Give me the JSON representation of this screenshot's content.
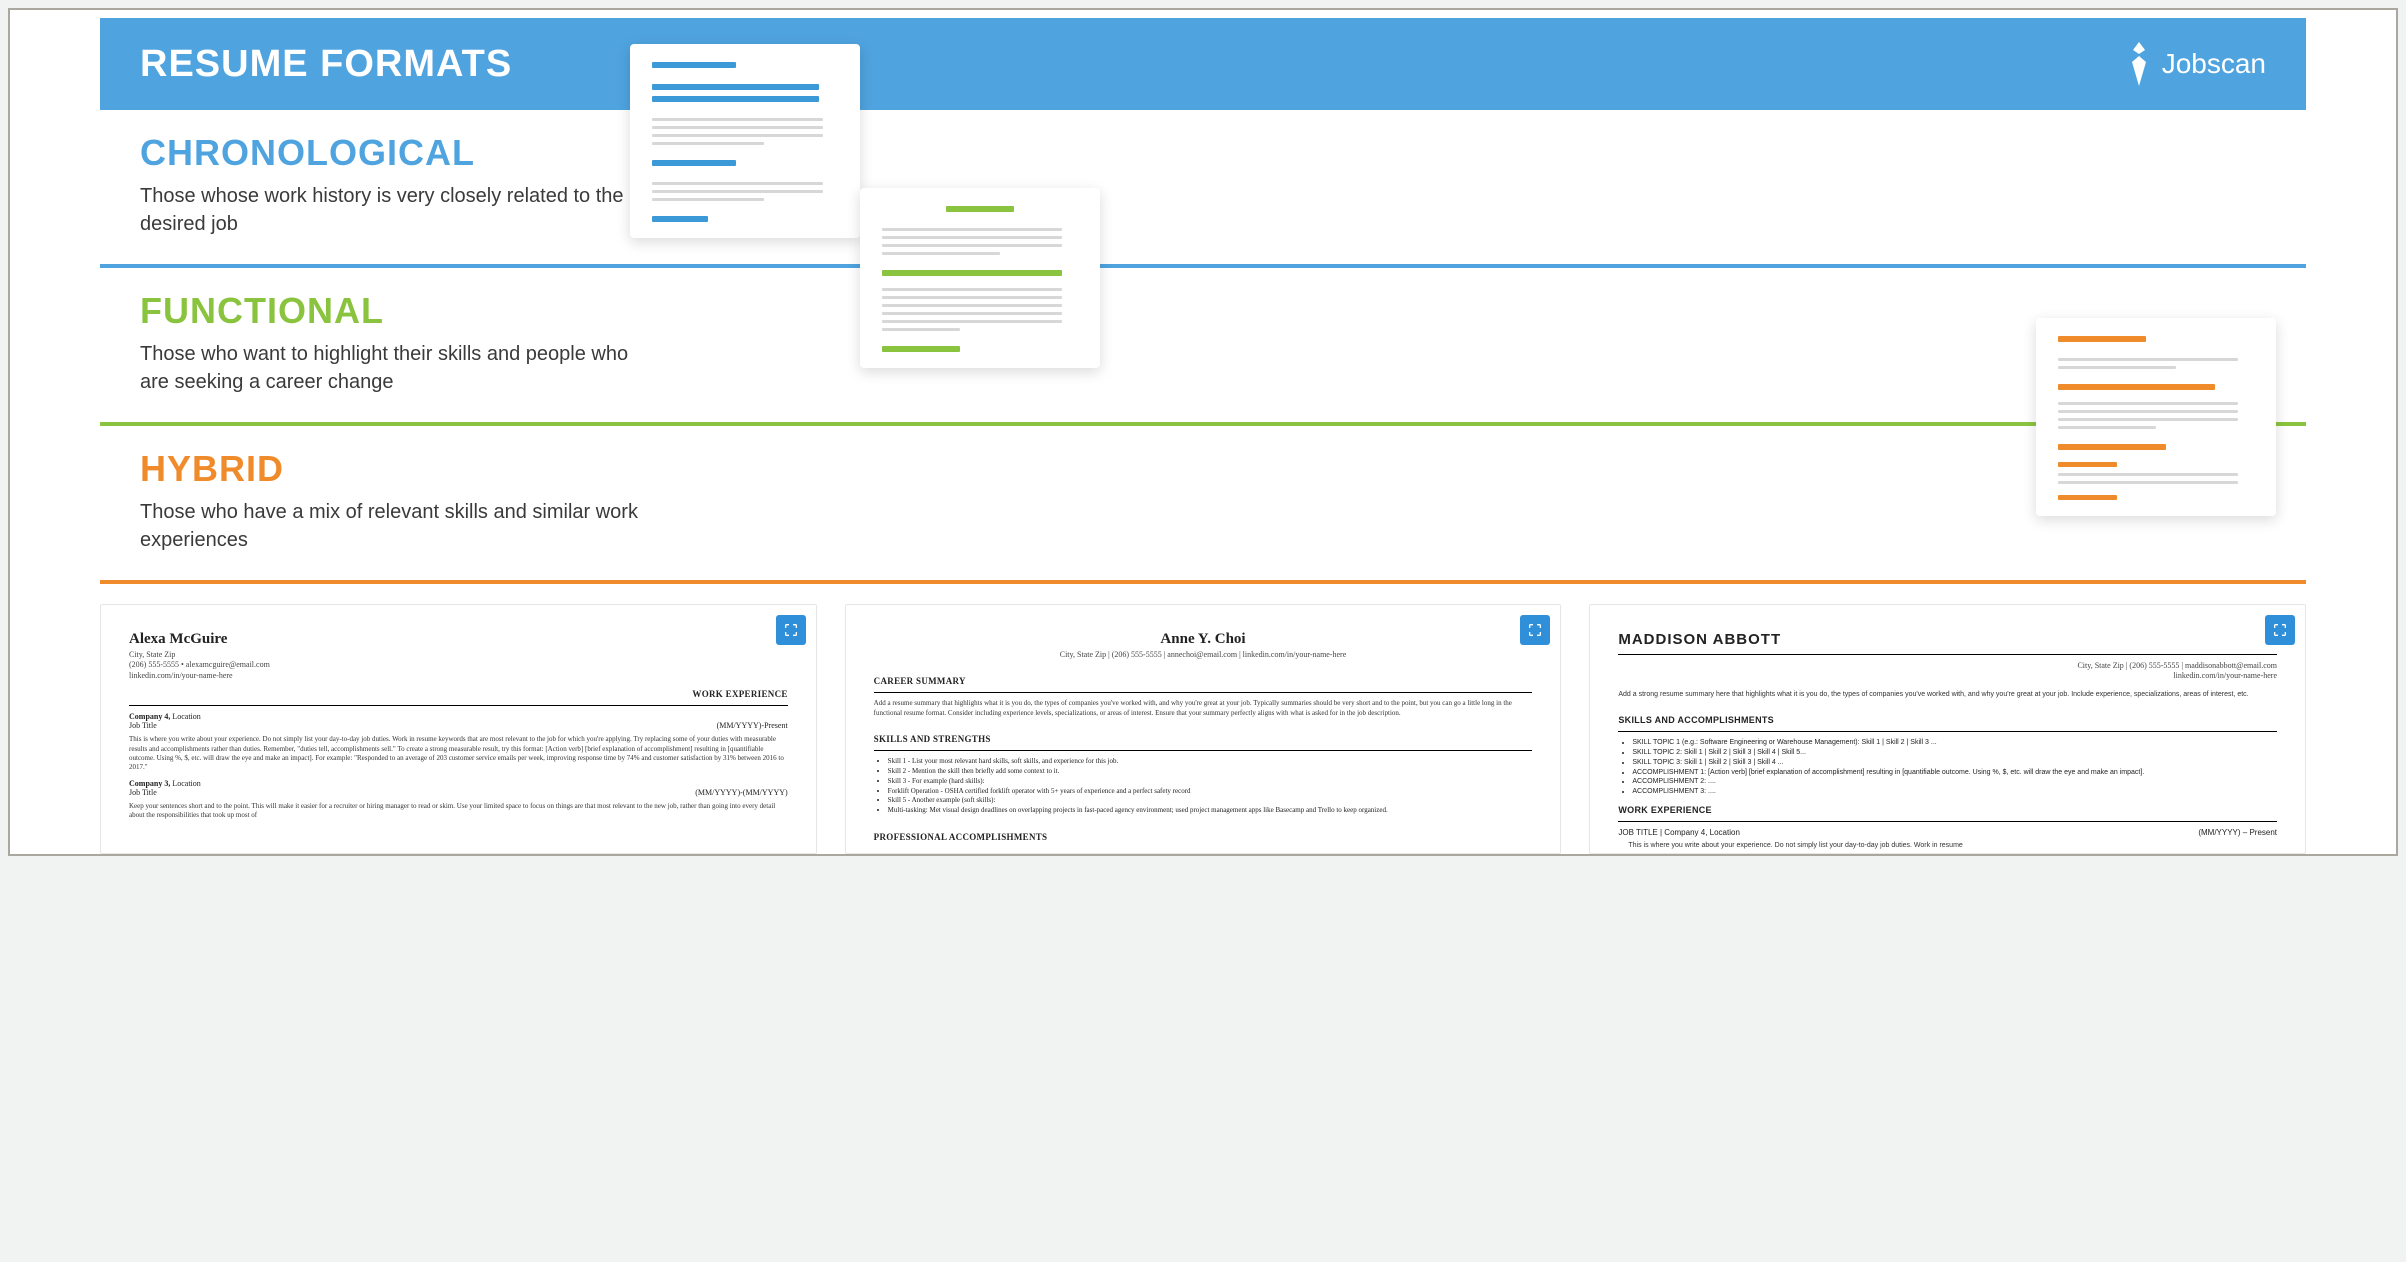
{
  "banner": {
    "title": "RESUME FORMATS",
    "brand": "Jobscan",
    "header_bg": "#4fa3df"
  },
  "sections": [
    {
      "key": "chronological",
      "heading": "CHRONOLOGICAL",
      "desc": "Those whose work history is very closely related to the desired job",
      "color": "#4fa3df",
      "accent": "#3c99d8"
    },
    {
      "key": "functional",
      "heading": "FUNCTIONAL",
      "desc": "Those who want to highlight their skills and people who are seeking a career change",
      "color": "#8ac43f",
      "accent": "#8ac43f"
    },
    {
      "key": "hybrid",
      "heading": "HYBRID",
      "desc": "Those who have a mix of relevant skills and similar work experiences",
      "color": "#f08b2c",
      "accent": "#f08b2c"
    }
  ],
  "docs": {
    "chronological_color": "#3c99d8",
    "functional_color": "#8ac43f",
    "hybrid_color": "#f08b2c",
    "grey": "#d7d7d7"
  },
  "cards": [
    {
      "name": "Alexa McGuire",
      "line1": "City, State Zip",
      "line2": "(206) 555-5555 • alexamcguire@email.com",
      "line3": "linkedin.com/in/your-name-here",
      "sec1": "WORK EXPERIENCE",
      "c1a": "Company 4,",
      "c1b": "Location",
      "c1t": "Job Title",
      "c1d": "(MM/YYYY)-Present",
      "p1": "This is where you write about your experience. Do not simply list your day-to-day job duties. Work in resume keywords that are most relevant to the job for which you're applying. Try replacing some of your duties with measurable results and accomplishments rather than duties. Remember, \"duties tell, accomplishments sell.\" To create a strong measurable result, try this format: [Action verb] [brief explanation of accomplishment] resulting in [quantifiable outcome. Using %, $, etc. will draw the eye and make an impact]. For example: \"Responded to an average of 203 customer service emails per week, improving response time by 74% and customer satisfaction by 31% between 2016 to 2017.\"",
      "c2a": "Company 3,",
      "c2b": "Location",
      "c2t": "Job Title",
      "c2d": "(MM/YYYY)-(MM/YYYY)",
      "p2": "Keep your sentences short and to the point. This will make it easier for a recruiter or hiring manager to read or skim. Use your limited space to focus on things are that most relevant to the new job, rather than going into every detail about the responsibilities that took up most of"
    },
    {
      "name": "Anne Y. Choi",
      "line1": "City, State Zip | (206) 555-5555 | annechoi@email.com | linkedin.com/in/your-name-here",
      "sec1": "CAREER SUMMARY",
      "p1": "Add a resume summary that highlights what it is you do, the types of companies you've worked with, and why you're great at your job. Typically summaries should be very short and to the point, but you can go a little long in the functional resume format. Consider including experience levels, specializations, or areas of interest. Ensure that your summary perfectly aligns with what is asked for in the job description.",
      "sec2": "SKILLS AND STRENGTHS",
      "s1": "Skill 1 - List your most relevant hard skills, soft skills, and experience for this job.",
      "s2": "Skill 2 - Mention the skill then briefly add some context to it.",
      "s3": "Skill 3 - For example (hard skills):",
      "s4": "Forklift Operation - OSHA certified forklift operator with 5+ years of experience and a perfect safety record",
      "s5": "Skill 5 - Another example (soft skills):",
      "s6": "Multi-tasking: Met visual design deadlines on overlapping projects in fast-paced agency environment; used project management apps like Basecamp and Trello to keep organized.",
      "sec3": "PROFESSIONAL ACCOMPLISHMENTS"
    },
    {
      "name": "MADDISON ABBOTT",
      "line1": "City, State Zip | (206) 555-5555 | maddisonabbott@email.com",
      "line2": "linkedin.com/in/your-name-here",
      "p1": "Add a strong resume summary here that highlights what it is you do, the types of companies you've worked with, and why you're great at your job. Include experience, specializations, areas of interest, etc.",
      "sec1": "SKILLS AND ACCOMPLISHMENTS",
      "s1": "SKILL TOPIC 1 (e.g.: Software Engineering or Warehouse Management): Skill 1 | Skill 2 | Skill 3 ...",
      "s2": "SKILL TOPIC 2: Skill 1 | Skill 2 | Skill 3 | Skill 4 | Skill 5...",
      "s3": "SKILL TOPIC 3: Skill 1 | Skill 2 | Skill 3 | Skill 4 ...",
      "s4": "ACCOMPLISHMENT 1: [Action verb] [brief explanation of accomplishment] resulting in [quantifiable outcome. Using %, $, etc. will draw the eye and make an impact].",
      "s5": "ACCOMPLISHMENT 2: ....",
      "s6": "ACCOMPLISHMENT 3: ....",
      "sec2": "WORK EXPERIENCE",
      "w1a": "JOB TITLE | Company 4, Location",
      "w1b": "(MM/YYYY) – Present",
      "p2": "This is where you write about your experience. Do not simply list your day-to-day job duties. Work in resume"
    }
  ]
}
